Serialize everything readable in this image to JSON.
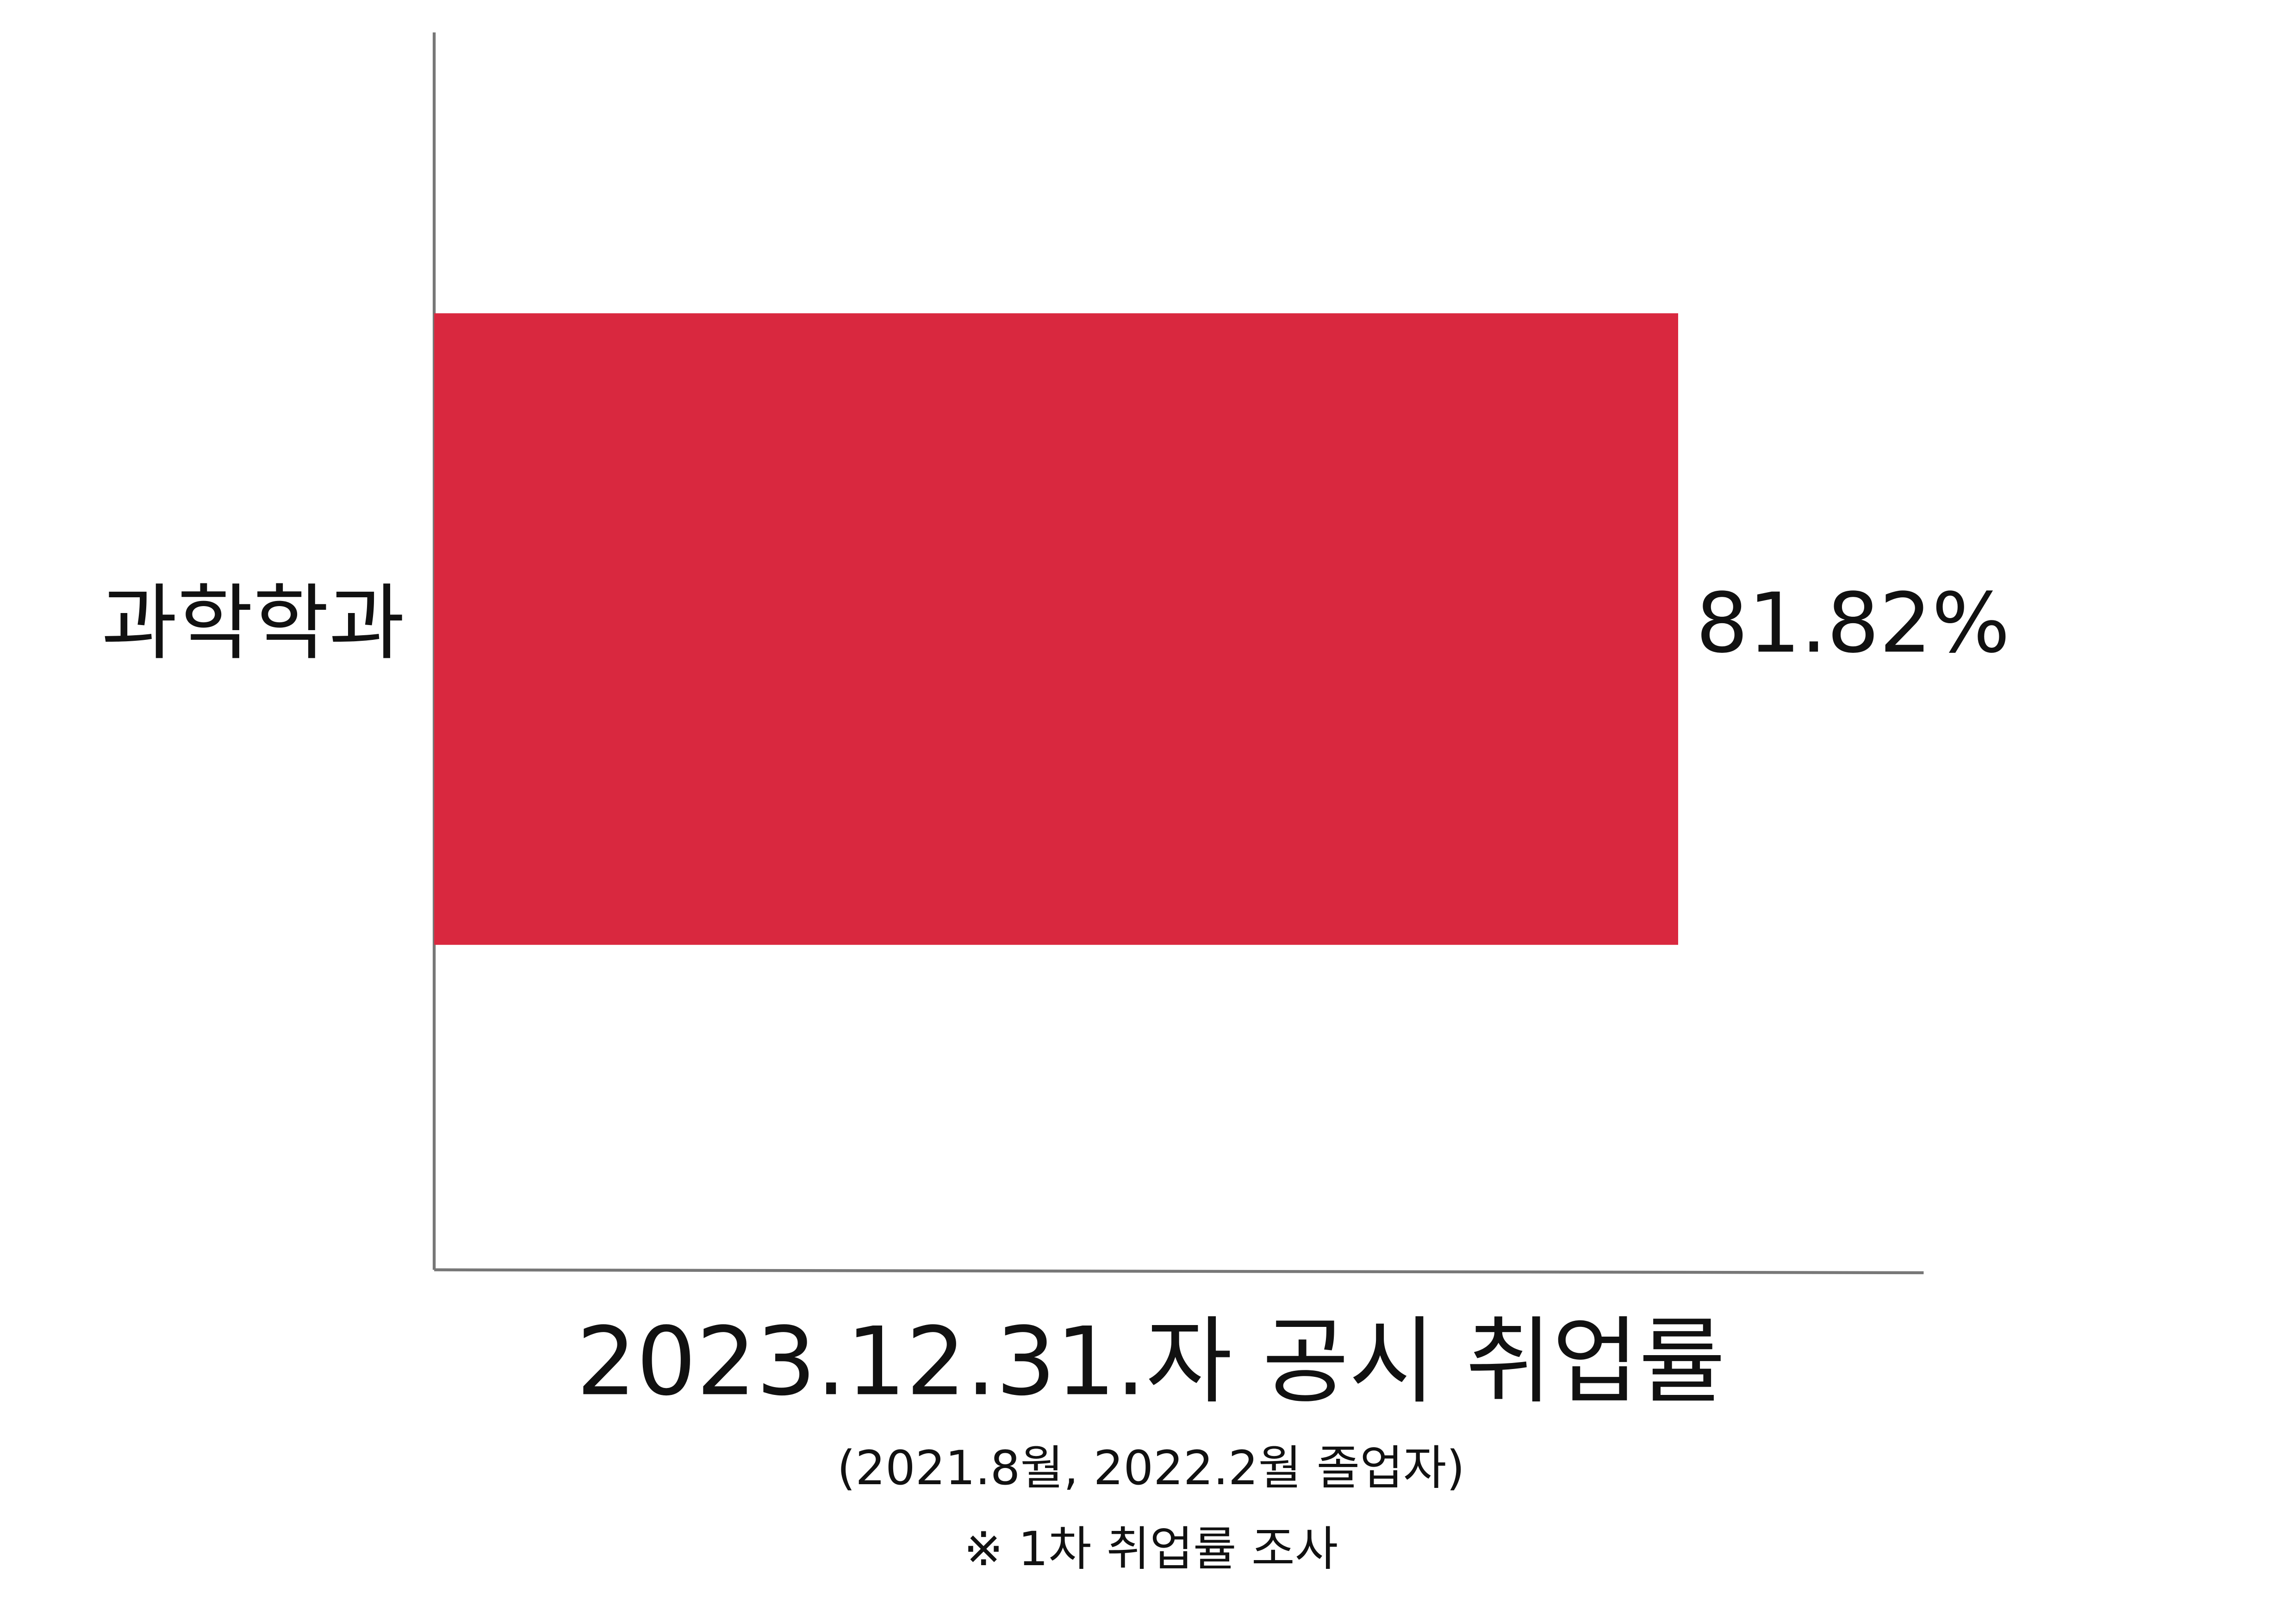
{
  "chart_data": {
    "type": "hbar",
    "title": "2023.12.31.자 공시 취업률",
    "subtitle": "(2021.8월, 2022.2월 졸업자)",
    "annotation": "※ 1차 취업률 조사",
    "categories": [
      "과학학과"
    ],
    "values": [
      81.82
    ],
    "value_labels": [
      "81.82%"
    ],
    "color": "#d9283f",
    "xlim": [
      0,
      100
    ]
  }
}
